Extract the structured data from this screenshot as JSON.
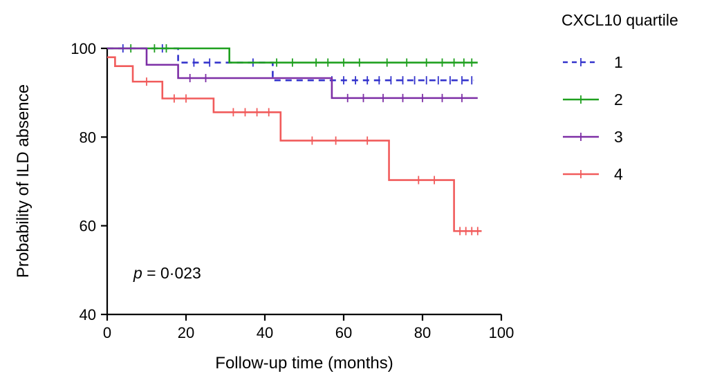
{
  "annotation": {
    "p_symbol": "p",
    "p_rest": " = 0·023"
  },
  "chart_data": {
    "type": "line",
    "subtype": "kaplan-meier-step",
    "title": "",
    "xlabel": "Follow-up time (months)",
    "ylabel": "Probability of ILD absence",
    "legend_title": "CXCL10 quartile",
    "legend_position": "right-top",
    "annotation_text": "p = 0·023",
    "xlim": [
      0,
      100
    ],
    "ylim": [
      40,
      100
    ],
    "xticks": [
      0,
      20,
      40,
      60,
      80,
      100
    ],
    "yticks": [
      40,
      60,
      80,
      100
    ],
    "grid": false,
    "series": [
      {
        "name": "1",
        "color": "#3333cc",
        "dash": true,
        "points": [
          [
            0,
            100
          ],
          [
            18,
            100
          ],
          [
            18,
            96.8
          ],
          [
            42,
            96.8
          ],
          [
            42,
            92.8
          ],
          [
            93,
            92.8
          ]
        ],
        "censors": [
          [
            4,
            100
          ],
          [
            14,
            100
          ],
          [
            22,
            96.8
          ],
          [
            26,
            96.8
          ],
          [
            37,
            96.8
          ],
          [
            57,
            92.8
          ],
          [
            60,
            92.8
          ],
          [
            63,
            92.8
          ],
          [
            66,
            92.8
          ],
          [
            69,
            92.8
          ],
          [
            72,
            92.8
          ],
          [
            75,
            92.8
          ],
          [
            78,
            92.8
          ],
          [
            81,
            92.8
          ],
          [
            84,
            92.8
          ],
          [
            87,
            92.8
          ],
          [
            90,
            92.8
          ],
          [
            92.5,
            92.8
          ]
        ]
      },
      {
        "name": "2",
        "color": "#1fa01f",
        "dash": false,
        "points": [
          [
            0,
            100
          ],
          [
            31,
            100
          ],
          [
            31,
            96.8
          ],
          [
            94,
            96.8
          ]
        ],
        "censors": [
          [
            6,
            100
          ],
          [
            12,
            100
          ],
          [
            15,
            100
          ],
          [
            43,
            96.8
          ],
          [
            47,
            96.8
          ],
          [
            53,
            96.8
          ],
          [
            56,
            96.8
          ],
          [
            60,
            96.8
          ],
          [
            64,
            96.8
          ],
          [
            71,
            96.8
          ],
          [
            76,
            96.8
          ],
          [
            81,
            96.8
          ],
          [
            85,
            96.8
          ],
          [
            88,
            96.8
          ],
          [
            90.5,
            96.8
          ],
          [
            92.5,
            96.8
          ]
        ]
      },
      {
        "name": "3",
        "color": "#7d2fa6",
        "dash": false,
        "points": [
          [
            0,
            100
          ],
          [
            10,
            100
          ],
          [
            10,
            96.3
          ],
          [
            18,
            96.3
          ],
          [
            18,
            93.3
          ],
          [
            57,
            93.3
          ],
          [
            57,
            88.8
          ],
          [
            94,
            88.8
          ]
        ],
        "censors": [
          [
            21,
            93.3
          ],
          [
            25,
            93.3
          ],
          [
            61,
            88.8
          ],
          [
            65,
            88.8
          ],
          [
            70,
            88.8
          ],
          [
            75,
            88.8
          ],
          [
            80,
            88.8
          ],
          [
            85,
            88.8
          ],
          [
            90,
            88.8
          ]
        ]
      },
      {
        "name": "4",
        "color": "#f15b5b",
        "dash": false,
        "points": [
          [
            0,
            98
          ],
          [
            2,
            98
          ],
          [
            2,
            96
          ],
          [
            6.5,
            96
          ],
          [
            6.5,
            92.5
          ],
          [
            14,
            92.5
          ],
          [
            14,
            88.7
          ],
          [
            27,
            88.7
          ],
          [
            27,
            85.6
          ],
          [
            44,
            85.6
          ],
          [
            44,
            79.2
          ],
          [
            71.5,
            79.2
          ],
          [
            71.5,
            70.3
          ],
          [
            88,
            70.3
          ],
          [
            88,
            58.8
          ],
          [
            95,
            58.8
          ]
        ],
        "censors": [
          [
            10,
            92.5
          ],
          [
            17,
            88.7
          ],
          [
            20,
            88.7
          ],
          [
            32,
            85.6
          ],
          [
            35,
            85.6
          ],
          [
            38,
            85.6
          ],
          [
            41,
            85.6
          ],
          [
            52,
            79.2
          ],
          [
            58,
            79.2
          ],
          [
            66,
            79.2
          ],
          [
            79,
            70.3
          ],
          [
            83,
            70.3
          ],
          [
            89.5,
            58.8
          ],
          [
            91,
            58.8
          ],
          [
            92.5,
            58.8
          ],
          [
            94,
            58.8
          ]
        ]
      }
    ]
  }
}
